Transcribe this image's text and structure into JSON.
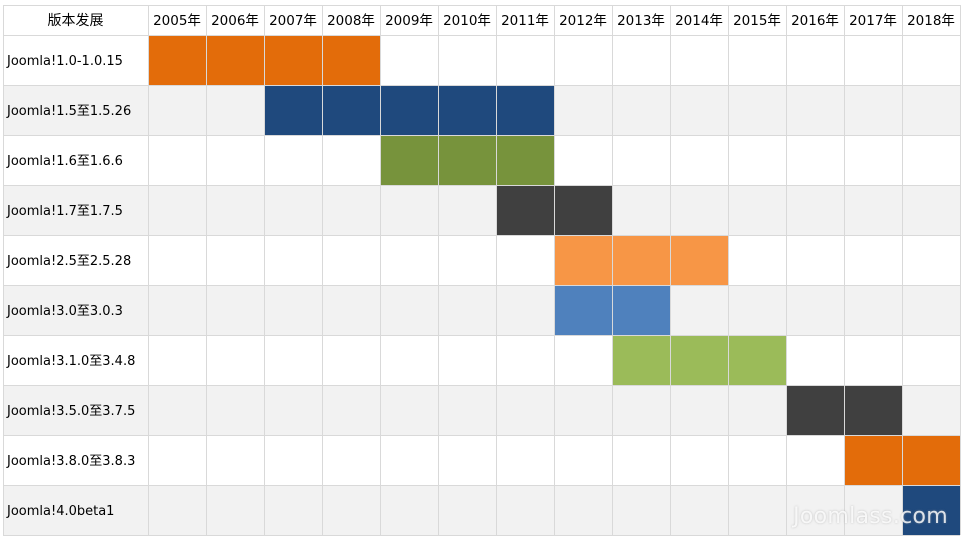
{
  "chart_data": {
    "type": "table",
    "corner_header": "版本发展",
    "years": [
      "2005年",
      "2006年",
      "2007年",
      "2008年",
      "2009年",
      "2010年",
      "2011年",
      "2012年",
      "2013年",
      "2014年",
      "2015年",
      "2016年",
      "2017年",
      "2018年"
    ],
    "rows": [
      {
        "label": "Joomla!1.0-1.0.15",
        "start": "2005年",
        "end": "2008年",
        "color": "#e36c0a"
      },
      {
        "label": "Joomla!1.5至1.5.26",
        "start": "2007年",
        "end": "2011年",
        "color": "#1f497d"
      },
      {
        "label": "Joomla!1.6至1.6.6",
        "start": "2009年",
        "end": "2011年",
        "color": "#77933c"
      },
      {
        "label": "Joomla!1.7至1.7.5",
        "start": "2011年",
        "end": "2012年",
        "color": "#404040"
      },
      {
        "label": "Joomla!2.5至2.5.28",
        "start": "2012年",
        "end": "2014年",
        "color": "#f79646"
      },
      {
        "label": "Joomla!3.0至3.0.3",
        "start": "2012年",
        "end": "2013年",
        "color": "#4f81bd"
      },
      {
        "label": "Joomla!3.1.0至3.4.8",
        "start": "2013年",
        "end": "2015年",
        "color": "#9bbb59"
      },
      {
        "label": "Joomla!3.5.0至3.7.5",
        "start": "2016年",
        "end": "2017年",
        "color": "#404040"
      },
      {
        "label": "Joomla!3.8.0至3.8.3",
        "start": "2017年",
        "end": "2018年",
        "color": "#e36c0a"
      },
      {
        "label": "Joomla!4.0beta1",
        "start": "2018年",
        "end": "2018年",
        "color": "#1f497d"
      }
    ],
    "stripe_color": "#f2f2f2",
    "grid_color": "#d9d9d9"
  },
  "watermark": "Joomlass.com"
}
